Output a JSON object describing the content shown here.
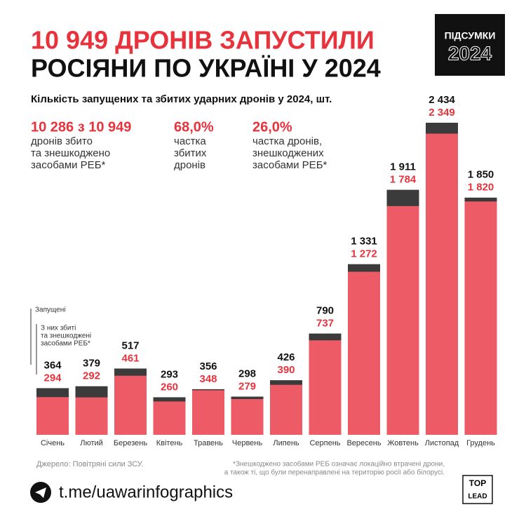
{
  "header": {
    "title_line1": "10 949 ДРОНІВ ЗАПУСТИЛИ",
    "title_line2": "РОСІЯНИ ПО УКРАЇНІ У 2024",
    "badge_top": "ПІДСУМКИ",
    "badge_year": "2024",
    "subtitle": "Кількість запущених та збитих ударних дронів у 2024, шт."
  },
  "stats": [
    {
      "value": "10 286 з 10 949",
      "lines": [
        "дронів збито",
        "та знешкоджено",
        "засобами РЕБ*"
      ]
    },
    {
      "value": "68,0%",
      "lines": [
        "частка",
        "збитих",
        "дронів"
      ]
    },
    {
      "value": "26,0%",
      "lines": [
        "частка дронів,",
        "знешкоджених",
        "засобами РЕБ*"
      ]
    }
  ],
  "chart_data": {
    "type": "bar",
    "categories": [
      "Січень",
      "Лютий",
      "Березень",
      "Квітень",
      "Травень",
      "Червень",
      "Липень",
      "Серпень",
      "Вересень",
      "Жовтень",
      "Листопад",
      "Грудень"
    ],
    "series": [
      {
        "name": "Запущені",
        "color": "#3b3b3b",
        "values": [
          364,
          379,
          517,
          293,
          356,
          298,
          426,
          790,
          1331,
          1911,
          2434,
          1850
        ],
        "value_labels": [
          "364",
          "379",
          "517",
          "293",
          "356",
          "298",
          "426",
          "790",
          "1 331",
          "1 911",
          "2 434",
          "1 850"
        ]
      },
      {
        "name": [
          "З них збиті",
          "та знешкоджені",
          "засобами РЕБ*"
        ],
        "color": "#ec5b66",
        "values": [
          294,
          292,
          461,
          260,
          348,
          279,
          390,
          737,
          1272,
          1784,
          2349,
          1820
        ],
        "value_labels": [
          "294",
          "292",
          "461",
          "260",
          "348",
          "279",
          "390",
          "737",
          "1 272",
          "1 784",
          "2 349",
          "1 820"
        ]
      }
    ]
  },
  "footer": {
    "source": "Джерело: Повітряні сили ЗСУ.",
    "note": [
      "*Знешкоджено засобами РЕБ означає локаційно втрачені дрони,",
      "а також ті, що були перенаправлені на територію росії або білорусі."
    ],
    "link": "t.me/uawarinfographics",
    "logo_top": "TOP",
    "logo_bottom": "LEAD"
  }
}
